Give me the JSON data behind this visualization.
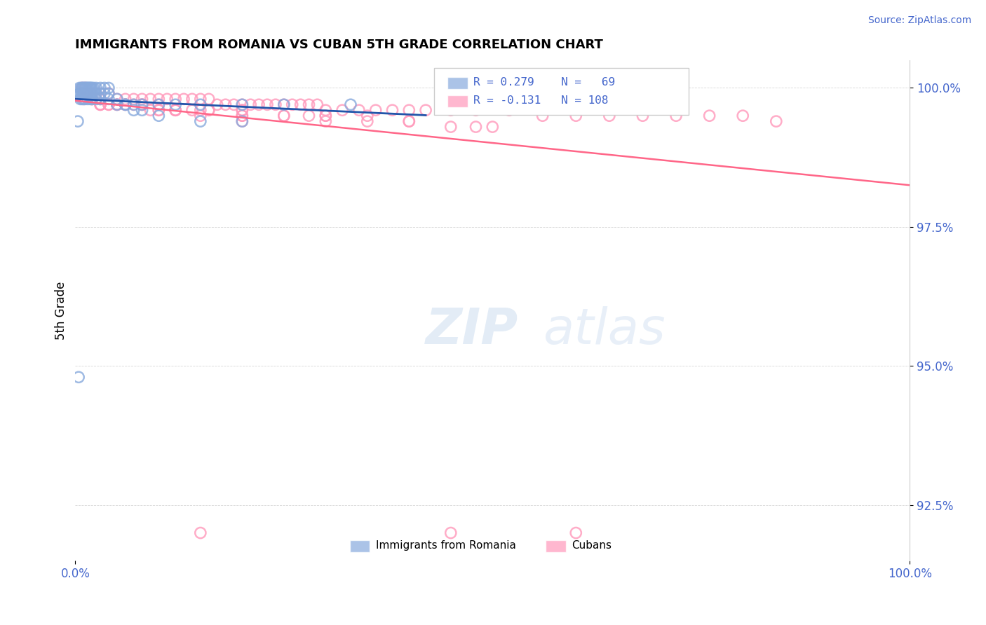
{
  "title": "IMMIGRANTS FROM ROMANIA VS CUBAN 5TH GRADE CORRELATION CHART",
  "source_text": "Source: ZipAtlas.com",
  "ylabel": "5th Grade",
  "xlim": [
    0.0,
    1.0
  ],
  "ylim": [
    0.915,
    1.005
  ],
  "ytick_labels": [
    "92.5%",
    "95.0%",
    "97.5%",
    "100.0%"
  ],
  "ytick_values": [
    0.925,
    0.95,
    0.975,
    1.0
  ],
  "xtick_labels": [
    "0.0%",
    "100.0%"
  ],
  "xtick_values": [
    0.0,
    1.0
  ],
  "blue_color": "#88AADD",
  "pink_color": "#FF99BB",
  "blue_line_color": "#2255AA",
  "pink_line_color": "#FF6688",
  "background_color": "#FFFFFF",
  "watermark_color": "#CCDDF0",
  "blue_points_x": [
    0.005,
    0.007,
    0.008,
    0.009,
    0.01,
    0.011,
    0.012,
    0.013,
    0.014,
    0.015,
    0.016,
    0.017,
    0.018,
    0.019,
    0.02,
    0.022,
    0.025,
    0.03,
    0.035,
    0.04,
    0.005,
    0.007,
    0.008,
    0.009,
    0.01,
    0.011,
    0.012,
    0.013,
    0.014,
    0.015,
    0.016,
    0.017,
    0.018,
    0.019,
    0.02,
    0.022,
    0.025,
    0.03,
    0.035,
    0.04,
    0.006,
    0.008,
    0.01,
    0.012,
    0.015,
    0.018,
    0.02,
    0.025,
    0.03,
    0.04,
    0.05,
    0.06,
    0.07,
    0.08,
    0.1,
    0.12,
    0.15,
    0.2,
    0.25,
    0.33,
    0.003,
    0.004,
    0.05,
    0.06,
    0.07,
    0.08,
    0.1,
    0.15,
    0.2
  ],
  "blue_points_y": [
    1.0,
    1.0,
    1.0,
    1.0,
    1.0,
    1.0,
    1.0,
    1.0,
    1.0,
    1.0,
    1.0,
    1.0,
    1.0,
    1.0,
    1.0,
    1.0,
    1.0,
    1.0,
    1.0,
    1.0,
    0.999,
    0.999,
    0.999,
    0.999,
    0.999,
    0.999,
    0.999,
    0.999,
    0.999,
    0.999,
    0.999,
    0.999,
    0.999,
    0.999,
    0.999,
    0.999,
    0.999,
    0.999,
    0.999,
    0.999,
    0.998,
    0.998,
    0.998,
    0.998,
    0.998,
    0.998,
    0.998,
    0.998,
    0.998,
    0.998,
    0.998,
    0.997,
    0.997,
    0.997,
    0.997,
    0.997,
    0.997,
    0.997,
    0.997,
    0.997,
    0.994,
    0.948,
    0.997,
    0.997,
    0.996,
    0.996,
    0.995,
    0.994,
    0.994
  ],
  "pink_points_x": [
    0.008,
    0.012,
    0.018,
    0.025,
    0.03,
    0.04,
    0.05,
    0.06,
    0.07,
    0.08,
    0.09,
    0.1,
    0.11,
    0.12,
    0.13,
    0.14,
    0.15,
    0.16,
    0.17,
    0.18,
    0.19,
    0.2,
    0.21,
    0.22,
    0.23,
    0.24,
    0.25,
    0.26,
    0.27,
    0.28,
    0.29,
    0.3,
    0.32,
    0.34,
    0.36,
    0.38,
    0.4,
    0.42,
    0.45,
    0.48,
    0.52,
    0.56,
    0.6,
    0.64,
    0.68,
    0.72,
    0.76,
    0.8,
    0.84,
    0.01,
    0.015,
    0.02,
    0.025,
    0.03,
    0.04,
    0.05,
    0.06,
    0.08,
    0.1,
    0.12,
    0.15,
    0.2,
    0.25,
    0.3,
    0.35,
    0.4,
    0.5,
    0.01,
    0.02,
    0.03,
    0.04,
    0.06,
    0.08,
    0.1,
    0.15,
    0.2,
    0.03,
    0.05,
    0.08,
    0.12,
    0.16,
    0.2,
    0.25,
    0.3,
    0.4,
    0.03,
    0.06,
    0.09,
    0.12,
    0.16,
    0.2,
    0.28,
    0.35,
    0.45,
    0.02,
    0.03,
    0.05,
    0.07,
    0.1,
    0.14,
    0.2,
    0.3,
    0.48,
    0.15,
    0.45,
    0.6
  ],
  "pink_points_y": [
    1.0,
    1.0,
    0.999,
    0.999,
    0.999,
    0.999,
    0.998,
    0.998,
    0.998,
    0.998,
    0.998,
    0.998,
    0.998,
    0.998,
    0.998,
    0.998,
    0.998,
    0.998,
    0.997,
    0.997,
    0.997,
    0.997,
    0.997,
    0.997,
    0.997,
    0.997,
    0.997,
    0.997,
    0.997,
    0.997,
    0.997,
    0.996,
    0.996,
    0.996,
    0.996,
    0.996,
    0.996,
    0.996,
    0.996,
    0.996,
    0.996,
    0.995,
    0.995,
    0.995,
    0.995,
    0.995,
    0.995,
    0.995,
    0.994,
    0.999,
    0.999,
    0.998,
    0.998,
    0.998,
    0.997,
    0.997,
    0.997,
    0.997,
    0.997,
    0.996,
    0.996,
    0.996,
    0.995,
    0.995,
    0.995,
    0.994,
    0.993,
    0.998,
    0.998,
    0.997,
    0.997,
    0.997,
    0.997,
    0.996,
    0.995,
    0.994,
    0.997,
    0.997,
    0.997,
    0.996,
    0.996,
    0.996,
    0.995,
    0.995,
    0.994,
    0.997,
    0.997,
    0.996,
    0.996,
    0.996,
    0.995,
    0.995,
    0.994,
    0.993,
    0.998,
    0.998,
    0.997,
    0.997,
    0.996,
    0.996,
    0.995,
    0.994,
    0.993,
    0.92,
    0.92,
    0.92
  ]
}
